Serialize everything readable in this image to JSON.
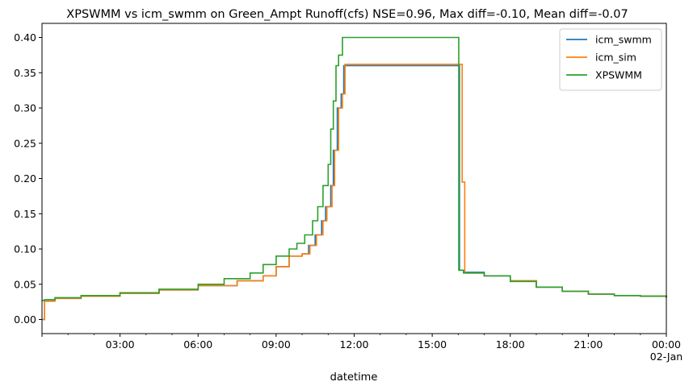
{
  "chart_data": {
    "type": "line",
    "title": "XPSWMM vs icm_swmm on Green_Ampt Runoff(cfs) NSE=0.96, Max diff=-0.10, Mean diff=-0.07",
    "xlabel": "datetime",
    "ylabel": "",
    "xlim_hours": [
      0,
      24
    ],
    "ylim": [
      -0.02,
      0.42
    ],
    "y_ticks": [
      0.0,
      0.05,
      0.1,
      0.15,
      0.2,
      0.25,
      0.3,
      0.35,
      0.4
    ],
    "y_tick_labels": [
      "0.00",
      "0.05",
      "0.10",
      "0.15",
      "0.20",
      "0.25",
      "0.30",
      "0.35",
      "0.40"
    ],
    "x_ticks": [
      {
        "hour": 0,
        "label": "",
        "sublabel": ""
      },
      {
        "hour": 3,
        "label": "03:00",
        "sublabel": ""
      },
      {
        "hour": 6,
        "label": "06:00",
        "sublabel": ""
      },
      {
        "hour": 9,
        "label": "09:00",
        "sublabel": ""
      },
      {
        "hour": 12,
        "label": "12:00",
        "sublabel": ""
      },
      {
        "hour": 15,
        "label": "15:00",
        "sublabel": ""
      },
      {
        "hour": 18,
        "label": "18:00",
        "sublabel": ""
      },
      {
        "hour": 21,
        "label": "21:00",
        "sublabel": ""
      },
      {
        "hour": 24,
        "label": "00:00",
        "sublabel": "02-Jan"
      }
    ],
    "grid": false,
    "legend_position": "top-right",
    "series": [
      {
        "name": "icm_swmm",
        "color": "#1f77b4",
        "x": [
          0.0,
          0.1,
          0.5,
          1.5,
          3.0,
          4.5,
          6.0,
          7.5,
          8.5,
          9.0,
          9.5,
          10.0,
          10.25,
          10.5,
          10.75,
          10.9,
          11.1,
          11.2,
          11.35,
          11.5,
          11.6,
          16.0,
          16.05,
          16.2,
          17.0,
          18.0,
          19.0,
          20.0,
          21.0,
          22.0,
          23.0,
          24.0
        ],
        "y": [
          0.0,
          0.028,
          0.03,
          0.033,
          0.037,
          0.042,
          0.048,
          0.055,
          0.062,
          0.075,
          0.09,
          0.093,
          0.105,
          0.12,
          0.14,
          0.16,
          0.19,
          0.24,
          0.3,
          0.32,
          0.36,
          0.36,
          0.07,
          0.067,
          0.062,
          0.055,
          0.046,
          0.04,
          0.036,
          0.034,
          0.033,
          0.031
        ]
      },
      {
        "name": "icm_sim",
        "color": "#ff7f0e",
        "x": [
          0.0,
          0.1,
          0.5,
          1.5,
          3.0,
          4.5,
          6.0,
          7.5,
          8.5,
          9.0,
          9.5,
          10.0,
          10.3,
          10.55,
          10.8,
          10.95,
          11.15,
          11.25,
          11.4,
          11.55,
          11.65,
          16.1,
          16.15,
          16.25,
          17.0,
          18.0,
          19.0,
          20.0,
          21.0,
          22.0,
          23.0,
          24.0
        ],
        "y": [
          0.0,
          0.026,
          0.03,
          0.033,
          0.037,
          0.042,
          0.048,
          0.055,
          0.062,
          0.075,
          0.09,
          0.093,
          0.105,
          0.12,
          0.14,
          0.16,
          0.19,
          0.24,
          0.3,
          0.32,
          0.362,
          0.362,
          0.195,
          0.066,
          0.062,
          0.055,
          0.046,
          0.04,
          0.036,
          0.034,
          0.033,
          0.031
        ]
      },
      {
        "name": "XPSWMM",
        "color": "#2ca02c",
        "x": [
          0.0,
          0.1,
          0.5,
          1.5,
          3.0,
          4.5,
          6.0,
          7.0,
          8.0,
          8.5,
          9.0,
          9.5,
          9.8,
          10.1,
          10.4,
          10.6,
          10.8,
          11.0,
          11.1,
          11.2,
          11.3,
          11.4,
          11.55,
          16.0,
          16.02,
          16.2,
          17.0,
          18.0,
          19.0,
          20.0,
          21.0,
          22.0,
          23.0,
          24.0
        ],
        "y": [
          0.027,
          0.028,
          0.031,
          0.034,
          0.038,
          0.043,
          0.05,
          0.058,
          0.066,
          0.078,
          0.09,
          0.1,
          0.108,
          0.12,
          0.14,
          0.16,
          0.19,
          0.22,
          0.27,
          0.31,
          0.36,
          0.375,
          0.4,
          0.4,
          0.07,
          0.066,
          0.062,
          0.054,
          0.046,
          0.04,
          0.036,
          0.034,
          0.033,
          0.031
        ]
      }
    ]
  }
}
